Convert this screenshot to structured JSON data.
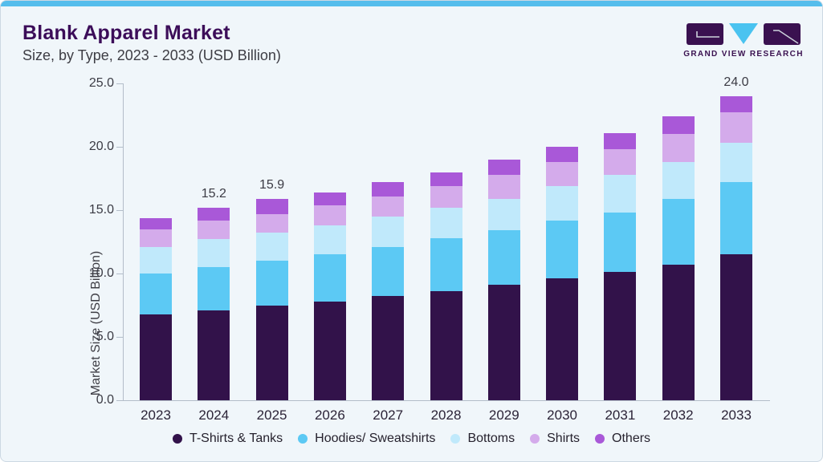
{
  "header": {
    "title": "Blank Apparel Market",
    "subtitle": "Size, by Type, 2023 - 2033 (USD Billion)",
    "logo_text": "GRAND VIEW RESEARCH"
  },
  "colors": {
    "accent_strip": "#55bdec",
    "card_bg": "#f0f6fa",
    "title_text": "#3c0d59",
    "subtitle_text": "#3d3d44",
    "axis_line": "#b3bdc9",
    "tick_label_text": "#3b3b44",
    "year_label_text": "#2b2337",
    "total_label_text": "#3b3b44",
    "legend_text": "#26222e",
    "logo_purple": "#3a1150",
    "logo_cyan": "#4ac3f0"
  },
  "chart_data": {
    "type": "bar",
    "stacked": true,
    "title": "Blank Apparel Market Size, by Type, 2023 - 2033 (USD Billion)",
    "xlabel": "",
    "ylabel": "Market Size (USD Billion)",
    "ylim": [
      0,
      25
    ],
    "yticks": [
      0,
      5,
      10,
      15,
      20,
      25
    ],
    "ytick_labels": [
      "0.0",
      "5.0",
      "10.0",
      "15.0",
      "20.0",
      "25.0"
    ],
    "grid": false,
    "legend_position": "bottom",
    "categories": [
      "2023",
      "2024",
      "2025",
      "2026",
      "2027",
      "2028",
      "2029",
      "2030",
      "2031",
      "2032",
      "2033"
    ],
    "series": [
      {
        "name": "T-Shirts & Tanks",
        "color": "#32124a",
        "values": [
          6.8,
          7.1,
          7.5,
          7.8,
          8.2,
          8.6,
          9.1,
          9.6,
          10.1,
          10.7,
          11.5
        ]
      },
      {
        "name": "Hoodies/ Sweatshirts",
        "color": "#5cc9f4",
        "values": [
          3.2,
          3.4,
          3.5,
          3.7,
          3.9,
          4.2,
          4.3,
          4.6,
          4.7,
          5.2,
          5.7
        ]
      },
      {
        "name": "Bottoms",
        "color": "#c0e9fb",
        "values": [
          2.1,
          2.2,
          2.2,
          2.3,
          2.4,
          2.4,
          2.5,
          2.7,
          3.0,
          2.9,
          3.1
        ]
      },
      {
        "name": "Shirts",
        "color": "#d4abeb",
        "values": [
          1.4,
          1.5,
          1.5,
          1.6,
          1.6,
          1.7,
          1.9,
          1.9,
          2.0,
          2.2,
          2.4
        ]
      },
      {
        "name": "Others",
        "color": "#a958d8",
        "values": [
          0.9,
          1.0,
          1.2,
          1.0,
          1.1,
          1.1,
          1.2,
          1.2,
          1.3,
          1.4,
          1.3
        ]
      }
    ],
    "total_labels": {
      "2024": "15.2",
      "2025": "15.9",
      "2033": "24.0"
    }
  }
}
